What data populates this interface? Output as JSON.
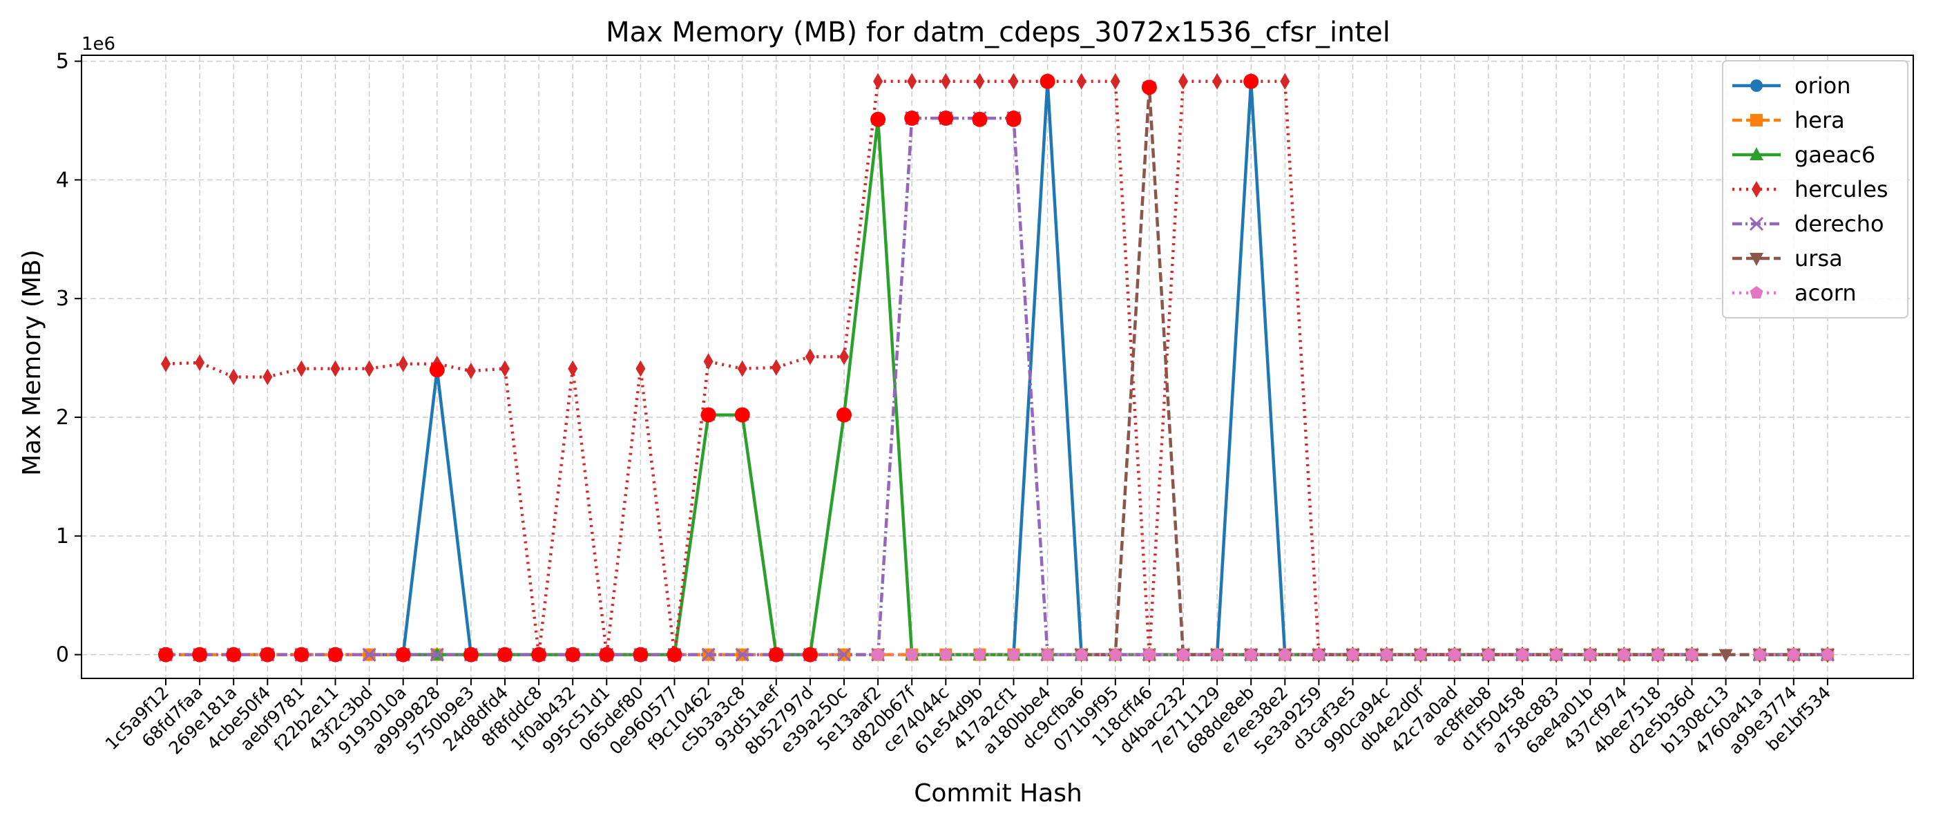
{
  "chart_data": {
    "type": "line",
    "title": "Max Memory (MB) for datm_cdeps_3072x1536_cfsr_intel",
    "xlabel": "Commit Hash",
    "ylabel": "Max Memory (MB)",
    "y_multiplier_label": "1e6",
    "y_scale": 1000000,
    "ylim": [
      -200000,
      5050000
    ],
    "y_ticks": [
      0,
      1,
      2,
      3,
      4,
      5
    ],
    "grid": true,
    "legend_position": "top-right",
    "categories": [
      "1c5a9f12",
      "68fd7faa",
      "269e181a",
      "4cbe50f4",
      "aebf9781",
      "f22b2e11",
      "43f2c3bd",
      "9193010a",
      "a9999828",
      "5750b9e3",
      "24d8dfd4",
      "8f8fddc8",
      "1f0ab432",
      "995c51d1",
      "065def80",
      "0e960577",
      "f9c10462",
      "c5b3a3c8",
      "93d51aef",
      "8b52797d",
      "e39a250c",
      "5e13aaf2",
      "d820b67f",
      "ce74044c",
      "61e54d9b",
      "417a2cf1",
      "a180bbe4",
      "dc9cfba6",
      "071b9f95",
      "118cff46",
      "d4bac232",
      "7e711129",
      "688de8eb",
      "e7ee38e2",
      "5e3a9259",
      "d3caf3e5",
      "990ca94c",
      "db4e2d0f",
      "42c7a0ad",
      "ac8ffeb8",
      "d1f50458",
      "a758c883",
      "6ae4a01b",
      "437cf974",
      "4bee7518",
      "d2e5b36d",
      "b1308c13",
      "4760a41a",
      "a99e3774",
      "be1bf534"
    ],
    "series": [
      {
        "name": "orion",
        "color": "#1f77b4",
        "style": "solid",
        "marker": "circle",
        "values": [
          null,
          null,
          null,
          null,
          null,
          null,
          0,
          0,
          2400000,
          0,
          null,
          null,
          null,
          null,
          null,
          null,
          null,
          null,
          null,
          null,
          null,
          null,
          null,
          null,
          null,
          0,
          4830000,
          0,
          null,
          null,
          null,
          0,
          4830000,
          0,
          null,
          null,
          null,
          null,
          null,
          null,
          null,
          null,
          null,
          null,
          null,
          null,
          null,
          null,
          null,
          null
        ]
      },
      {
        "name": "hera",
        "color": "#ff7f0e",
        "style": "dashed",
        "marker": "square",
        "values": [
          0,
          0,
          0,
          0,
          0,
          0,
          0,
          0,
          0,
          0,
          0,
          0,
          0,
          0,
          0,
          0,
          0,
          0,
          0,
          0,
          0,
          0,
          0,
          0,
          0,
          0,
          0,
          0,
          0,
          0,
          0,
          0,
          0,
          0,
          0,
          0,
          0,
          0,
          0,
          0,
          0,
          0,
          0,
          0,
          0,
          0,
          null,
          0,
          0,
          0
        ]
      },
      {
        "name": "gaeac6",
        "color": "#2ca02c",
        "style": "solid",
        "marker": "triangle",
        "values": [
          null,
          null,
          null,
          null,
          null,
          null,
          null,
          0,
          0,
          0,
          0,
          0,
          0,
          0,
          0,
          0,
          2020000,
          2020000,
          0,
          0,
          2020000,
          4510000,
          0,
          0,
          0,
          0,
          0,
          0,
          0,
          0,
          0,
          0,
          0,
          0,
          0,
          0,
          0,
          0,
          0,
          0,
          0,
          0,
          0,
          0,
          0,
          0,
          null,
          0,
          0,
          0
        ]
      },
      {
        "name": "hercules",
        "color": "#d62728",
        "style": "dotted",
        "marker": "diamond",
        "values": [
          2450000,
          2460000,
          2340000,
          2340000,
          2410000,
          2410000,
          2410000,
          2450000,
          2450000,
          2390000,
          2410000,
          0,
          2410000,
          0,
          2410000,
          0,
          2470000,
          2410000,
          2420000,
          2510000,
          2510000,
          4830000,
          4830000,
          4830000,
          4830000,
          4830000,
          4830000,
          4830000,
          4830000,
          0,
          4830000,
          4830000,
          4830000,
          4830000,
          0,
          0,
          0,
          0,
          0,
          0,
          0,
          0,
          0,
          0,
          0,
          0,
          null,
          0,
          0,
          0
        ]
      },
      {
        "name": "derecho",
        "color": "#9467bd",
        "style": "dashdot",
        "marker": "x",
        "values": [
          0,
          0,
          0,
          0,
          0,
          0,
          0,
          0,
          0,
          0,
          0,
          0,
          0,
          0,
          0,
          0,
          0,
          0,
          0,
          0,
          0,
          0,
          4520000,
          4520000,
          4520000,
          4520000,
          0,
          0,
          0,
          0,
          0,
          0,
          0,
          0,
          0,
          0,
          0,
          0,
          0,
          0,
          0,
          0,
          0,
          0,
          0,
          0,
          null,
          0,
          0,
          0
        ]
      },
      {
        "name": "ursa",
        "color": "#8c564b",
        "style": "dashed",
        "marker": "triangle-down",
        "values": [
          null,
          null,
          null,
          null,
          null,
          null,
          null,
          null,
          null,
          null,
          null,
          null,
          null,
          null,
          null,
          null,
          null,
          null,
          null,
          null,
          null,
          null,
          null,
          null,
          null,
          null,
          null,
          0,
          0,
          4780000,
          0,
          0,
          0,
          0,
          0,
          0,
          0,
          0,
          0,
          0,
          0,
          0,
          0,
          0,
          0,
          0,
          0,
          0,
          0,
          0
        ]
      },
      {
        "name": "acorn",
        "color": "#e377c2",
        "style": "dotted",
        "marker": "pentagon",
        "values": [
          null,
          null,
          null,
          null,
          null,
          null,
          null,
          null,
          null,
          null,
          null,
          null,
          null,
          null,
          null,
          null,
          null,
          null,
          null,
          null,
          null,
          0,
          0,
          0,
          0,
          0,
          0,
          0,
          0,
          0,
          0,
          0,
          0,
          0,
          0,
          0,
          0,
          0,
          0,
          0,
          0,
          0,
          0,
          0,
          0,
          0,
          null,
          0,
          0,
          0
        ]
      }
    ],
    "highlight_points": {
      "color": "#ff0000",
      "points": [
        [
          0,
          0
        ],
        [
          1,
          0
        ],
        [
          2,
          0
        ],
        [
          3,
          0
        ],
        [
          4,
          0
        ],
        [
          5,
          0
        ],
        [
          7,
          0
        ],
        [
          8,
          2400000
        ],
        [
          9,
          0
        ],
        [
          10,
          0
        ],
        [
          11,
          0
        ],
        [
          12,
          0
        ],
        [
          13,
          0
        ],
        [
          14,
          0
        ],
        [
          15,
          0
        ],
        [
          16,
          2020000
        ],
        [
          17,
          2020000
        ],
        [
          18,
          0
        ],
        [
          19,
          0
        ],
        [
          20,
          2020000
        ],
        [
          21,
          4510000
        ],
        [
          22,
          4520000
        ],
        [
          23,
          4520000
        ],
        [
          24,
          4510000
        ],
        [
          25,
          4520000
        ],
        [
          25,
          4510000
        ],
        [
          26,
          4830000
        ],
        [
          29,
          4780000
        ],
        [
          32,
          4830000
        ]
      ]
    }
  }
}
